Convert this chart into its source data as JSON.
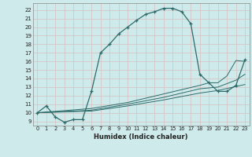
{
  "title": "",
  "xlabel": "Humidex (Indice chaleur)",
  "bg_color": "#ceeaea",
  "line_color": "#2d6b6b",
  "grid_color": "#b8d8d8",
  "grid_major_color": "#c8e0e0",
  "xlim": [
    -0.5,
    23.5
  ],
  "ylim": [
    8.5,
    22.8
  ],
  "xticks": [
    0,
    1,
    2,
    3,
    4,
    5,
    6,
    7,
    8,
    9,
    10,
    11,
    12,
    13,
    14,
    15,
    16,
    17,
    18,
    19,
    20,
    21,
    22,
    23
  ],
  "yticks": [
    9,
    10,
    11,
    12,
    13,
    14,
    15,
    16,
    17,
    18,
    19,
    20,
    21,
    22
  ],
  "curve1_x": [
    0,
    1,
    2,
    3,
    4,
    5,
    6,
    7,
    8,
    9,
    10,
    11,
    12,
    13,
    14,
    15,
    16,
    17,
    18,
    19,
    20,
    21,
    22,
    23
  ],
  "curve1_y": [
    10.0,
    10.8,
    9.5,
    8.9,
    9.2,
    9.2,
    12.5,
    17.0,
    18.0,
    19.2,
    20.0,
    20.8,
    21.5,
    21.8,
    22.2,
    22.2,
    21.8,
    20.4,
    14.5,
    13.5,
    12.5,
    12.5,
    13.2,
    16.2
  ],
  "line2_x": [
    0,
    6,
    10,
    14,
    18,
    19,
    20,
    21,
    22,
    23
  ],
  "line2_y": [
    10.0,
    10.5,
    11.2,
    12.2,
    13.2,
    13.5,
    13.5,
    14.3,
    16.1,
    16.0
  ],
  "line3_x": [
    0,
    6,
    10,
    14,
    18,
    20,
    22,
    23
  ],
  "line3_y": [
    10.0,
    10.3,
    11.0,
    11.8,
    12.8,
    13.0,
    13.8,
    14.5
  ],
  "line4_x": [
    0,
    6,
    10,
    14,
    18,
    20,
    23
  ],
  "line4_y": [
    10.0,
    10.2,
    10.8,
    11.5,
    12.3,
    12.6,
    13.3
  ]
}
